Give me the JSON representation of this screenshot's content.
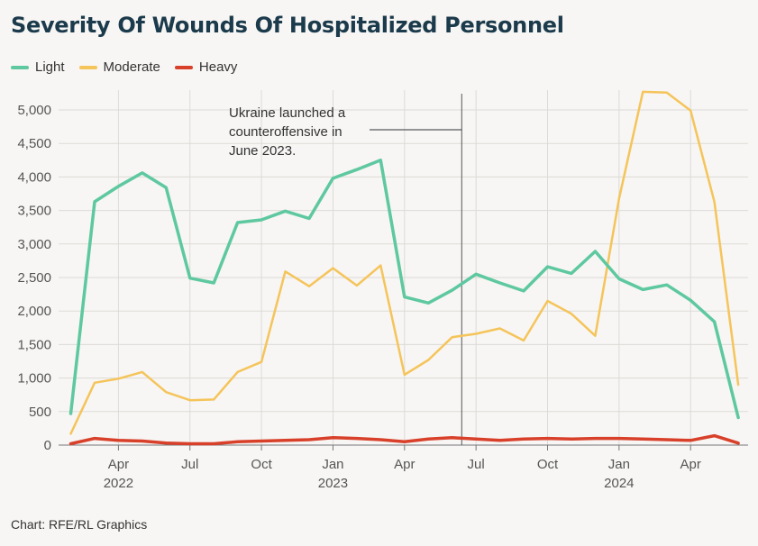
{
  "title": "Severity Of Wounds Of Hospitalized Personnel",
  "footer": "Chart: RFE/RL Graphics",
  "chart_data": {
    "type": "line",
    "title": "Severity Of Wounds Of Hospitalized Personnel",
    "xlabel": "",
    "ylabel": "",
    "ylim": [
      0,
      5200
    ],
    "y_ticks": [
      0,
      500,
      1000,
      1500,
      2000,
      2500,
      3000,
      3500,
      4000,
      4500,
      5000
    ],
    "y_tick_labels": [
      "0",
      "500",
      "1,000",
      "1,500",
      "2,000",
      "2,500",
      "3,000",
      "3,500",
      "4,000",
      "4,500",
      "5,000"
    ],
    "x_tick_labels": [
      {
        "month": "Apr",
        "year": "2022",
        "index": 2
      },
      {
        "month": "Jul",
        "year": "",
        "index": 5
      },
      {
        "month": "Oct",
        "year": "",
        "index": 8
      },
      {
        "month": "Jan",
        "year": "2023",
        "index": 11
      },
      {
        "month": "Apr",
        "year": "",
        "index": 14
      },
      {
        "month": "Jul",
        "year": "",
        "index": 17
      },
      {
        "month": "Oct",
        "year": "",
        "index": 20
      },
      {
        "month": "Jan",
        "year": "2024",
        "index": 23
      },
      {
        "month": "Apr",
        "year": "",
        "index": 26
      }
    ],
    "x": [
      "2022-02",
      "2022-03",
      "2022-04",
      "2022-05",
      "2022-06",
      "2022-07",
      "2022-08",
      "2022-09",
      "2022-10",
      "2022-11",
      "2022-12",
      "2023-01",
      "2023-02",
      "2023-03",
      "2023-04",
      "2023-05",
      "2023-06",
      "2023-07",
      "2023-08",
      "2023-09",
      "2023-10",
      "2023-11",
      "2023-12",
      "2024-01",
      "2024-02",
      "2024-03",
      "2024-04",
      "2024-05",
      "2024-06"
    ],
    "grid": true,
    "legend_position": "top-left",
    "series": [
      {
        "name": "Light",
        "color": "#5ec8a0",
        "values": [
          470,
          3630,
          3860,
          4060,
          3840,
          2490,
          2420,
          3320,
          3360,
          3490,
          3380,
          3980,
          4110,
          4250,
          2210,
          2120,
          2310,
          2550,
          2420,
          2300,
          2660,
          2560,
          2890,
          2480,
          2320,
          2390,
          2160,
          1840,
          410
        ]
      },
      {
        "name": "Moderate",
        "color": "#f5c45a",
        "values": [
          170,
          930,
          990,
          1090,
          790,
          670,
          680,
          1090,
          1240,
          2590,
          2370,
          2640,
          2380,
          2680,
          1050,
          1270,
          1610,
          1660,
          1740,
          1560,
          2150,
          1960,
          1630,
          3680,
          5270,
          5260,
          4990,
          3630,
          900
        ]
      },
      {
        "name": "Heavy",
        "color": "#d8402a",
        "values": [
          20,
          100,
          70,
          60,
          30,
          20,
          20,
          50,
          60,
          70,
          80,
          110,
          100,
          80,
          50,
          90,
          110,
          90,
          70,
          90,
          100,
          90,
          100,
          100,
          90,
          80,
          70,
          140,
          30
        ]
      }
    ],
    "annotation": {
      "text_lines": [
        "Ukraine launched a",
        "counteroffensive in",
        "June 2023."
      ],
      "x_index": 16.4
    }
  }
}
